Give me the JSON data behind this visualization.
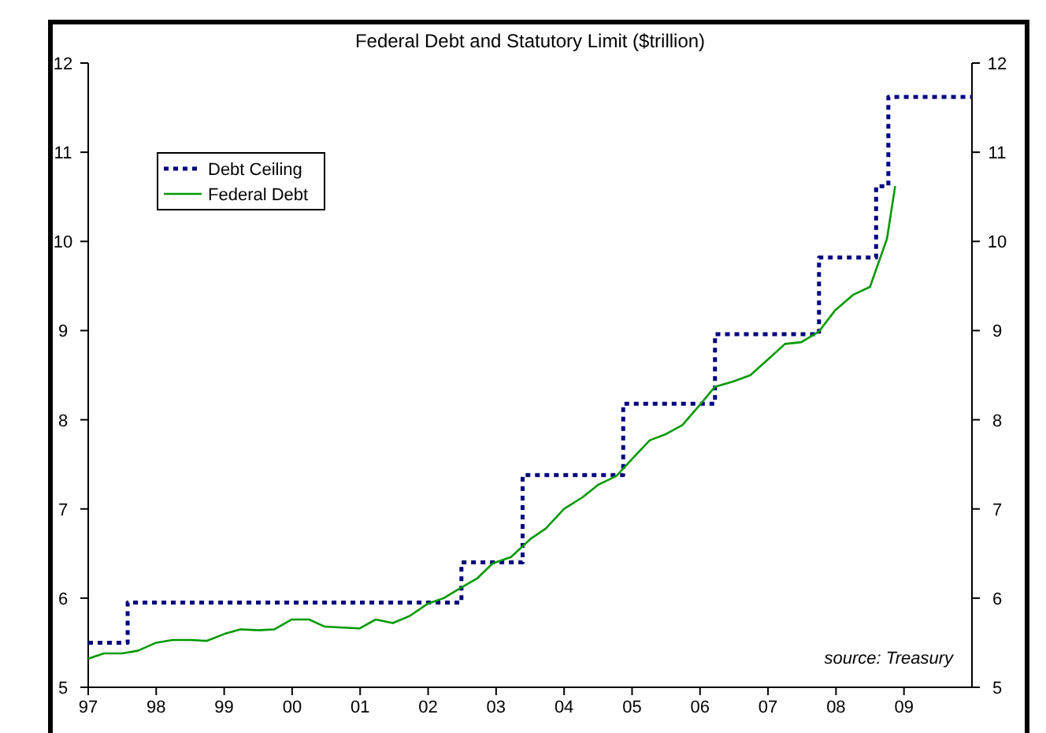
{
  "chart_data": {
    "type": "line",
    "title": "Federal Debt and Statutory Limit ($trillion)",
    "xlim": [
      1997,
      2010
    ],
    "xticks": [
      {
        "value": 1997,
        "label": "97"
      },
      {
        "value": 1998,
        "label": "98"
      },
      {
        "value": 1999,
        "label": "99"
      },
      {
        "value": 2000,
        "label": "00"
      },
      {
        "value": 2001,
        "label": "01"
      },
      {
        "value": 2002,
        "label": "02"
      },
      {
        "value": 2003,
        "label": "03"
      },
      {
        "value": 2004,
        "label": "04"
      },
      {
        "value": 2005,
        "label": "05"
      },
      {
        "value": 2006,
        "label": "06"
      },
      {
        "value": 2007,
        "label": "07"
      },
      {
        "value": 2008,
        "label": "08"
      },
      {
        "value": 2009,
        "label": "09"
      }
    ],
    "ylim": [
      5,
      12
    ],
    "yticks": [
      5,
      6,
      7,
      8,
      9,
      10,
      11,
      12
    ],
    "y2lim": [
      5,
      12
    ],
    "y2ticks": [
      5,
      6,
      7,
      8,
      9,
      10,
      11,
      12
    ],
    "legend": "top left",
    "annotations": [
      "source: Treasury"
    ],
    "series": [
      {
        "name": "Debt Ceiling",
        "type": "step",
        "color": "#000080",
        "line_style": "dotted",
        "x": [
          1997,
          1997.58,
          2002.49,
          2003.39,
          2004.87,
          2006.22,
          2007.75,
          2008.59,
          2008.77,
          2010
        ],
        "values": [
          5.5,
          5.95,
          6.4,
          7.38,
          8.18,
          8.96,
          9.82,
          10.62,
          11.62,
          11.62
        ]
      },
      {
        "name": "Federal Debt",
        "color": "#009900",
        "line_style": "solid",
        "x": [
          1997,
          1997.23,
          1997.5,
          1997.73,
          1998,
          1998.24,
          1998.51,
          1998.74,
          1999.01,
          1999.24,
          1999.51,
          1999.74,
          1999.99,
          2000.25,
          2000.48,
          2000.75,
          2000.99,
          2001.23,
          2001.48,
          2001.73,
          2002,
          2002.23,
          2002.49,
          2002.72,
          2002.95,
          2003.22,
          2003.5,
          2003.73,
          2004,
          2004.27,
          2004.5,
          2004.77,
          2005,
          2005.26,
          2005.5,
          2005.74,
          2005.99,
          2006.22,
          2006.49,
          2006.74,
          2006.99,
          2007.25,
          2007.49,
          2007.75,
          2007.99,
          2008.25,
          2008.5,
          2008.75,
          2008.87
        ],
        "values": [
          5.32,
          5.38,
          5.38,
          5.41,
          5.5,
          5.53,
          5.53,
          5.52,
          5.6,
          5.65,
          5.64,
          5.65,
          5.76,
          5.76,
          5.68,
          5.67,
          5.66,
          5.76,
          5.72,
          5.8,
          5.94,
          6.0,
          6.12,
          6.22,
          6.39,
          6.46,
          6.66,
          6.78,
          7.0,
          7.13,
          7.27,
          7.37,
          7.56,
          7.77,
          7.84,
          7.94,
          8.16,
          8.37,
          8.43,
          8.5,
          8.67,
          8.85,
          8.87,
          8.99,
          9.23,
          9.4,
          9.49,
          10.03,
          10.62
        ]
      }
    ]
  }
}
